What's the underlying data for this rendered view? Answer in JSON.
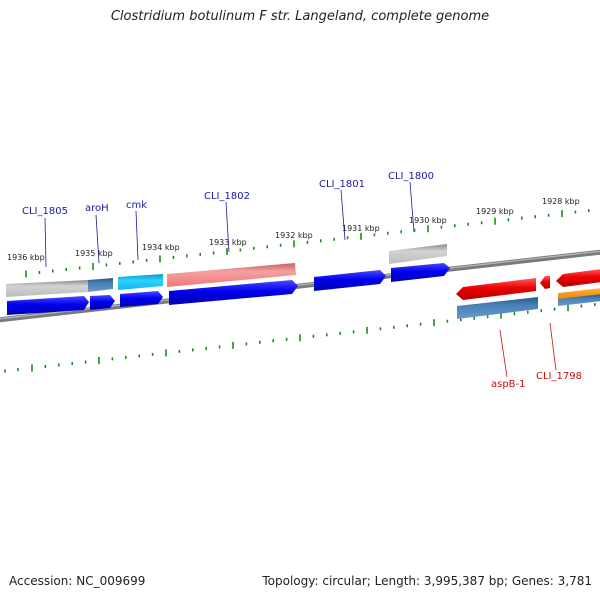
{
  "title": "Clostridium botulinum F str. Langeland, complete genome",
  "footer": {
    "accession": "Accession: NC_009699",
    "summary": "Topology: circular; Length: 3,995,387 bp; Genes: 3,781"
  },
  "colors": {
    "backbone": "#808080",
    "tick": "#1e8a1e",
    "label_forward": "#1a1aa0",
    "label_reverse": "#c41010"
  },
  "scale_labels": [
    "1936 kbp",
    "1935 kbp",
    "1934 kbp",
    "1933 kbp",
    "1932 kbp",
    "1931 kbp",
    "1930 kbp",
    "1929 kbp",
    "1928 kbp"
  ],
  "gene_labels": [
    {
      "name": "CLI_1805",
      "strand": "forward"
    },
    {
      "name": "aroH",
      "strand": "forward"
    },
    {
      "name": "cmk",
      "strand": "forward"
    },
    {
      "name": "CLI_1802",
      "strand": "forward"
    },
    {
      "name": "CLI_1801",
      "strand": "forward"
    },
    {
      "name": "CLI_1800",
      "strand": "forward"
    },
    {
      "name": "aspB-1",
      "strand": "reverse"
    },
    {
      "name": "CLI_1798",
      "strand": "reverse"
    }
  ]
}
